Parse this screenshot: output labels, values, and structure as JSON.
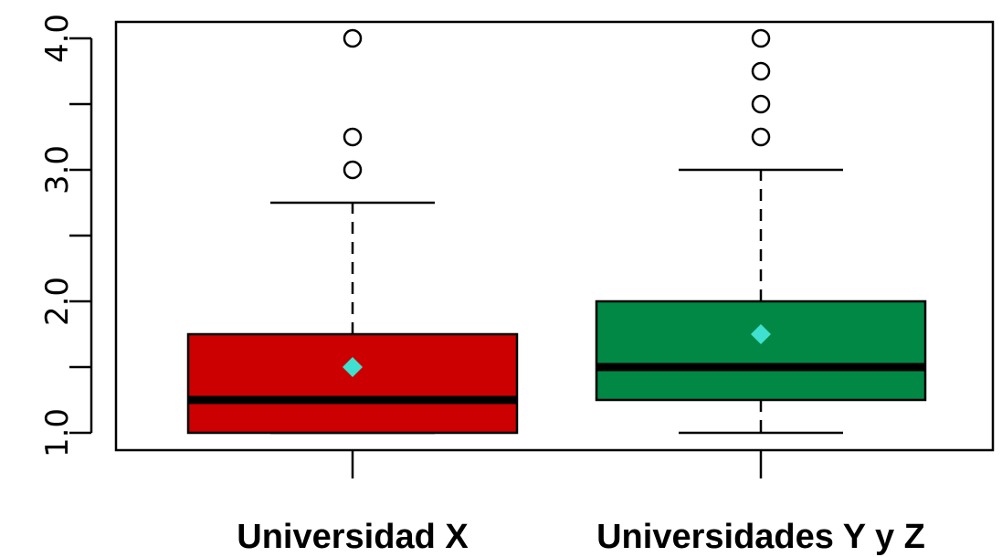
{
  "chart_data": {
    "type": "boxplot",
    "title": "",
    "xlabel": "",
    "ylabel": "",
    "ylim": [
      0.9,
      4.1
    ],
    "yticks": [
      1.0,
      1.5,
      2.0,
      2.5,
      3.0,
      3.5,
      4.0
    ],
    "ytick_labels": [
      "1.0",
      "",
      "2.0",
      "",
      "3.0",
      "",
      "4.0"
    ],
    "categories": [
      "Universidad X",
      "Universidades Y y Z"
    ],
    "grid": false,
    "legend": "none",
    "boxes": [
      {
        "category": "Universidad X",
        "whisker_low": 1.0,
        "q1": 1.0,
        "median": 1.25,
        "q3": 1.75,
        "whisker_high": 2.75,
        "mean": 1.5,
        "outliers": [
          3.0,
          3.25,
          4.0
        ],
        "color": "#cc0000"
      },
      {
        "category": "Universidades Y y Z",
        "whisker_low": 1.0,
        "q1": 1.25,
        "median": 1.5,
        "q3": 2.0,
        "whisker_high": 3.0,
        "mean": 1.75,
        "outliers": [
          3.25,
          3.5,
          3.75,
          4.0
        ],
        "color": "#008844"
      }
    ],
    "mean_marker_color": "#40e0d0"
  }
}
